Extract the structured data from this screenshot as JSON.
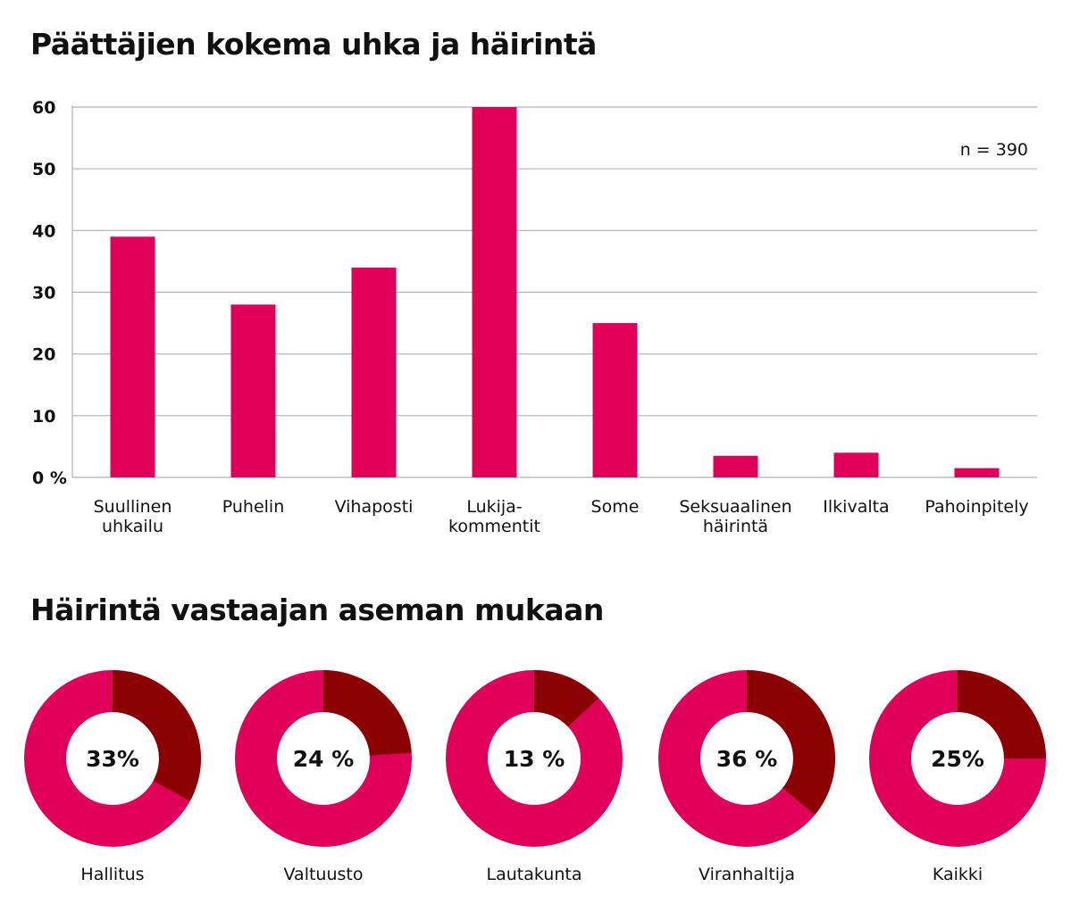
{
  "titles": {
    "bar_chart": "Päättäjien kokema uhka ja häirintä",
    "donuts": "Häirintä vastaajan aseman mukaan"
  },
  "colors": {
    "bar": "#e0005a",
    "donut_main": "#e0005a",
    "donut_highlight": "#8b0000",
    "grid": "#b0b0b0",
    "text": "#111111"
  },
  "chart_data": [
    {
      "type": "bar",
      "title": "Päättäjien kokema uhka ja häirintä",
      "categories": [
        [
          "Suullinen",
          "uhkailu"
        ],
        [
          "Puhelin"
        ],
        [
          "Vihaposti"
        ],
        [
          "Lukija-",
          "kommentit"
        ],
        [
          "Some"
        ],
        [
          "Seksuaalinen",
          "häirintä"
        ],
        [
          "Ilkivalta"
        ],
        [
          "Pahoinpitely"
        ]
      ],
      "values": [
        39,
        28,
        34,
        60,
        25,
        3.5,
        4,
        1.5
      ],
      "ylim": [
        0,
        60
      ],
      "yticks": [
        0,
        10,
        20,
        30,
        40,
        50,
        60
      ],
      "ytick_labels": [
        "0 %",
        "10",
        "20",
        "30",
        "40",
        "50",
        "60"
      ],
      "grid": true,
      "annotation": "n = 390"
    },
    {
      "type": "pie",
      "title": "Häirintä vastaajan aseman mukaan",
      "donut": true,
      "categories": [
        "Hallitus",
        "Valtuusto",
        "Lautakunta",
        "Viranhaltija",
        "Kaikki"
      ],
      "values": [
        33,
        24,
        13,
        36,
        25
      ],
      "value_labels": [
        "33%",
        "24 %",
        "13 %",
        "36 %",
        "25%"
      ]
    }
  ]
}
